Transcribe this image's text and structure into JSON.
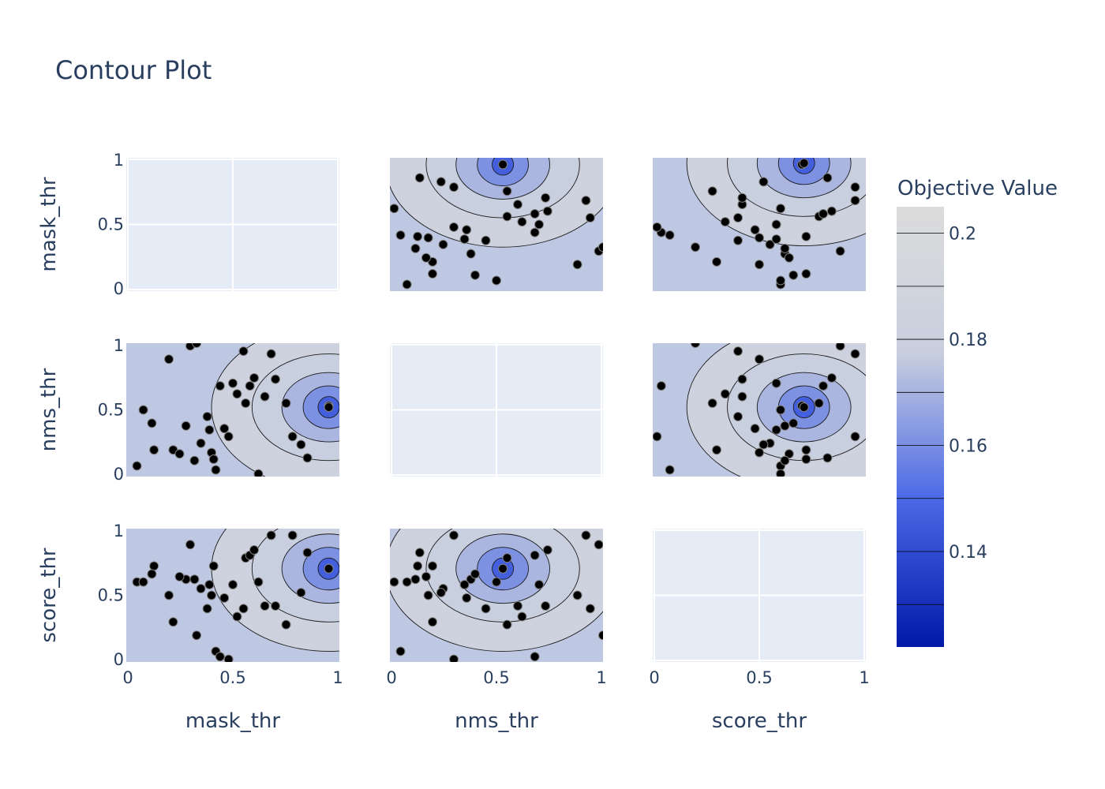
{
  "chart_data": {
    "type": "contour",
    "title": "Contour Plot",
    "params": [
      "mask_thr",
      "nms_thr",
      "score_thr"
    ],
    "axis_range": [
      0,
      1
    ],
    "tick_labels": [
      "0",
      "0.5",
      "1"
    ],
    "colorbar": {
      "title": "Objective Value",
      "range": [
        0.122,
        0.205
      ],
      "ticks": [
        {
          "value": 0.2,
          "label": "0.2"
        },
        {
          "value": 0.18,
          "label": "0.18"
        },
        {
          "value": 0.16,
          "label": "0.16"
        },
        {
          "value": 0.14,
          "label": "0.14"
        }
      ],
      "colorscale": [
        "#0018a8",
        "#4a68e6",
        "#c8cede",
        "#dcdcdc"
      ]
    },
    "grid": true,
    "points": {
      "mask_thr": [
        0.05,
        0.08,
        0.13,
        0.2,
        0.22,
        0.28,
        0.3,
        0.33,
        0.35,
        0.38,
        0.39,
        0.4,
        0.41,
        0.42,
        0.44,
        0.46,
        0.48,
        0.5,
        0.52,
        0.55,
        0.56,
        0.58,
        0.6,
        0.62,
        0.65,
        0.68,
        0.7,
        0.75,
        0.78,
        0.82,
        0.85,
        0.95,
        0.12,
        0.25,
        0.32
      ],
      "nms_thr": [
        0.08,
        0.5,
        0.2,
        0.88,
        0.2,
        0.38,
        0.98,
        1.0,
        0.25,
        0.45,
        0.35,
        0.18,
        0.13,
        0.05,
        0.68,
        0.36,
        0.3,
        0.7,
        0.62,
        0.94,
        0.55,
        0.68,
        0.74,
        0.02,
        0.6,
        0.92,
        0.73,
        0.55,
        0.3,
        0.24,
        0.14,
        0.53,
        0.4,
        0.17,
        0.12
      ],
      "score_thr": [
        0.6,
        0.6,
        0.72,
        0.5,
        0.3,
        0.62,
        0.88,
        0.2,
        0.55,
        0.4,
        0.58,
        0.5,
        0.72,
        0.08,
        0.04,
        0.48,
        0.02,
        0.58,
        0.34,
        0.4,
        0.78,
        0.8,
        0.84,
        0.6,
        0.42,
        0.95,
        0.42,
        0.28,
        0.95,
        0.52,
        0.82,
        0.7,
        0.66,
        0.64,
        0.62
      ]
    },
    "optima": [
      {
        "x_param": "nms_thr",
        "y_param": "mask_thr",
        "x": 0.53,
        "y": 0.95
      },
      {
        "x_param": "score_thr",
        "y_param": "mask_thr",
        "x": 0.71,
        "y": 0.96
      },
      {
        "x_param": "mask_thr",
        "y_param": "nms_thr",
        "x": 0.95,
        "y": 0.52
      },
      {
        "x_param": "score_thr",
        "y_param": "nms_thr",
        "x": 0.71,
        "y": 0.52
      },
      {
        "x_param": "mask_thr",
        "y_param": "score_thr",
        "x": 0.95,
        "y": 0.7
      },
      {
        "x_param": "nms_thr",
        "y_param": "score_thr",
        "x": 0.53,
        "y": 0.7
      }
    ],
    "legend": "colorbar-right"
  }
}
